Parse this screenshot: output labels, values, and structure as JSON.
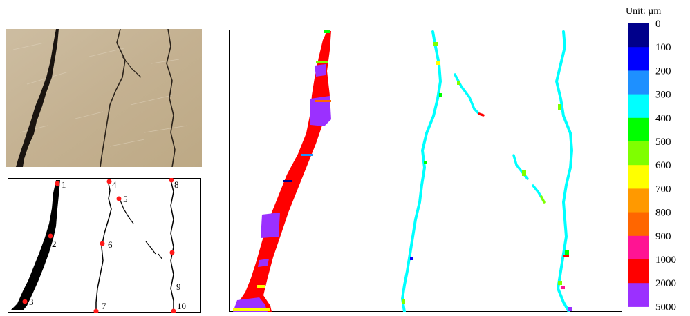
{
  "unit_label": "Unit: µm",
  "trace_points": [
    "1",
    "2",
    "3",
    "4",
    "5",
    "6",
    "7",
    "8",
    "9",
    "10"
  ],
  "legend": {
    "values": [
      "0",
      "100",
      "200",
      "300",
      "400",
      "500",
      "600",
      "700",
      "800",
      "900",
      "1000",
      "2000",
      "5000"
    ],
    "colors": [
      "#00008b",
      "#0000ff",
      "#1e90ff",
      "#00ffff",
      "#00ff00",
      "#7fff00",
      "#ffff00",
      "#ff9900",
      "#ff6600",
      "#ff1493",
      "#ff0000",
      "#9b30ff"
    ]
  },
  "colors": {
    "marker": "#ff1a1a",
    "crack_photo": "#1a1410",
    "photo_bg": "#c8b597"
  }
}
